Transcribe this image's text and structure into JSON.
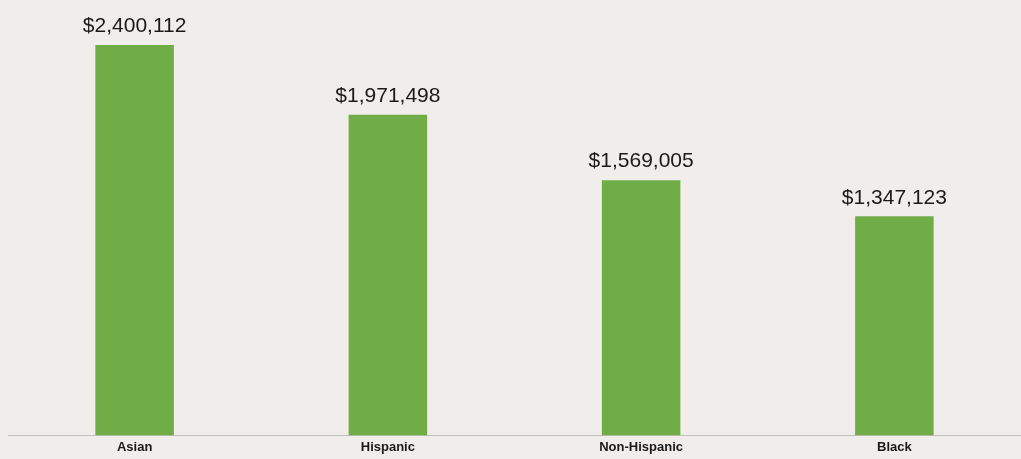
{
  "chart_data": {
    "type": "bar",
    "categories": [
      "Asian",
      "Hispanic",
      "Non-Hispanic",
      "Black"
    ],
    "values": [
      2400112,
      1971498,
      1569005,
      1347123
    ],
    "value_labels": [
      "$2,400,112",
      "$1,971,498",
      "$1,569,005",
      "$1,347,123"
    ],
    "color": "#70ad47",
    "grid": false,
    "legend": false,
    "tick_labels": "x"
  }
}
